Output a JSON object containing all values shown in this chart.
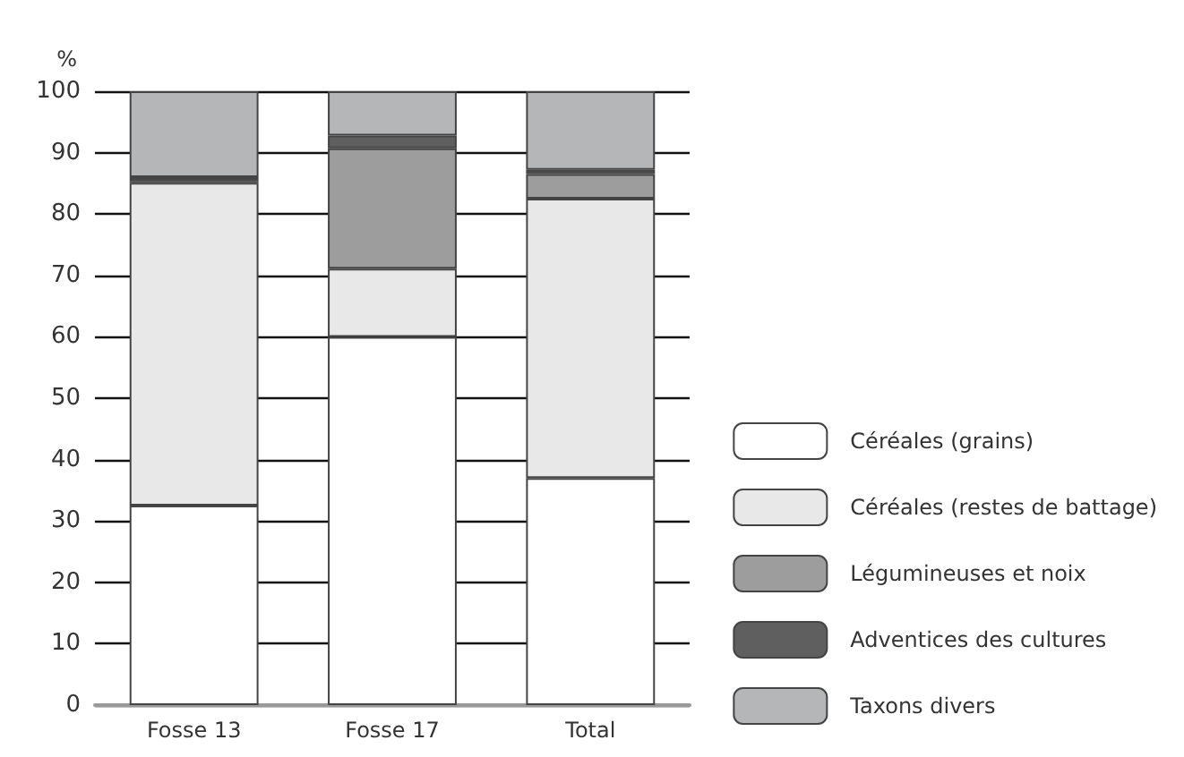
{
  "chart_data": {
    "type": "bar",
    "stacked": true,
    "ylabel": "%",
    "categories": [
      "Fosse 13",
      "Fosse 17",
      "Total"
    ],
    "series": [
      {
        "name": "Céréales (grains)",
        "color": "#ffffff",
        "values": [
          32.5,
          60,
          37
        ]
      },
      {
        "name": "Céréales (restes de battage)",
        "color": "#e8e8e8",
        "values": [
          52.6,
          11.1,
          45.5
        ]
      },
      {
        "name": "Légumineuses et noix",
        "color": "#9d9d9e",
        "values": [
          0.3,
          19.6,
          4.0
        ]
      },
      {
        "name": "Adventices des cultures",
        "color": "#5f5f5f",
        "values": [
          0.6,
          2.1,
          0.7
        ]
      },
      {
        "name": "Taxons divers",
        "color": "#b5b6b8",
        "values": [
          14.0,
          7.2,
          12.8
        ]
      }
    ],
    "ylim": [
      0,
      100
    ],
    "yticks": [
      0,
      10,
      20,
      30,
      40,
      50,
      60,
      70,
      80,
      90,
      100
    ],
    "grid": "y",
    "legend": "bottom right"
  }
}
